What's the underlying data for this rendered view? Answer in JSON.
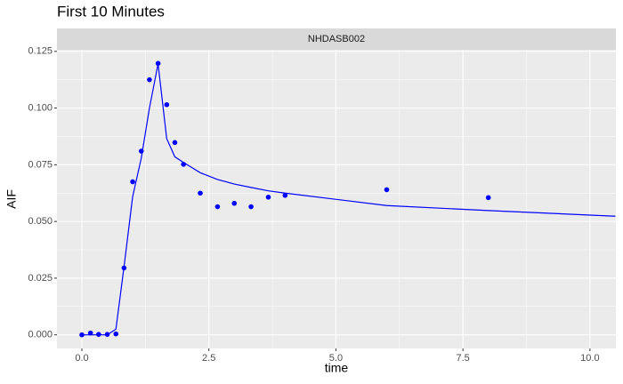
{
  "chart_data": {
    "type": "scatter",
    "title": "First 10 Minutes",
    "facet": "NHDASB002",
    "x_label": "time",
    "y_label": "AIF",
    "grid": true,
    "xlim": [
      -0.49,
      10.51
    ],
    "ylim": [
      -0.006,
      0.1257
    ],
    "xticks": [
      {
        "value": 0,
        "label": "0.0"
      },
      2.5,
      {
        "value": 5,
        "label": "5.0"
      },
      7.5,
      {
        "value": 10,
        "label": "10.0"
      }
    ],
    "yticks": [
      {
        "value": 0,
        "label": "0.000"
      },
      0.025,
      {
        "value": 0.05,
        "label": "0.050"
      },
      0.075,
      {
        "value": 0.1,
        "label": "0.100"
      },
      0.125
    ],
    "series": [
      {
        "type": "scatter",
        "color": "#0000ff",
        "x": [
          0,
          0.17,
          0.33,
          0.5,
          0.67,
          0.83,
          1.0,
          1.17,
          1.33,
          1.5,
          1.67,
          1.83,
          2.0,
          2.33,
          2.67,
          3.0,
          3.33,
          3.67,
          4.0,
          6.0,
          8.0
        ],
        "values": [
          0,
          0.0008,
          0.0002,
          0.0002,
          0.0004,
          0.0295,
          0.0675,
          0.081,
          0.1125,
          0.1197,
          0.1015,
          0.0848,
          0.0752,
          0.0625,
          0.0565,
          0.058,
          0.0565,
          0.0607,
          0.0615,
          0.064,
          0.0605
        ]
      },
      {
        "type": "line",
        "color": "#0000ff",
        "x": [
          0,
          0.17,
          0.33,
          0.5,
          0.67,
          0.83,
          1.0,
          1.17,
          1.33,
          1.5,
          1.67,
          1.83,
          2.0,
          2.33,
          2.67,
          3.0,
          3.33,
          3.67,
          4.0,
          6.0,
          8.0,
          10.5
        ],
        "values": [
          0,
          0,
          0,
          0,
          0.0025,
          0.03,
          0.061,
          0.078,
          0.1,
          0.1195,
          0.0865,
          0.0785,
          0.076,
          0.0715,
          0.0685,
          0.0665,
          0.065,
          0.0635,
          0.0625,
          0.057,
          0.0548,
          0.0523
        ]
      }
    ]
  }
}
